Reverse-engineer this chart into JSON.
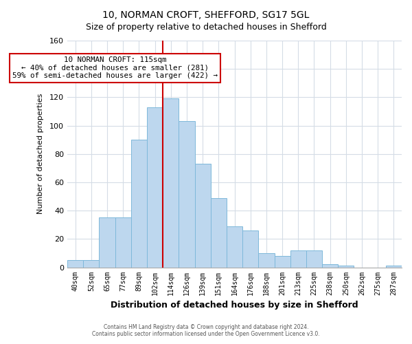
{
  "title": "10, NORMAN CROFT, SHEFFORD, SG17 5GL",
  "subtitle": "Size of property relative to detached houses in Shefford",
  "xlabel": "Distribution of detached houses by size in Shefford",
  "ylabel": "Number of detached properties",
  "bar_labels": [
    "40sqm",
    "52sqm",
    "65sqm",
    "77sqm",
    "89sqm",
    "102sqm",
    "114sqm",
    "126sqm",
    "139sqm",
    "151sqm",
    "164sqm",
    "176sqm",
    "188sqm",
    "201sqm",
    "213sqm",
    "225sqm",
    "238sqm",
    "250sqm",
    "262sqm",
    "275sqm",
    "287sqm"
  ],
  "bar_values": [
    5,
    5,
    35,
    35,
    90,
    113,
    119,
    103,
    73,
    49,
    29,
    26,
    10,
    8,
    12,
    12,
    2,
    1,
    0,
    0,
    1
  ],
  "bar_color": "#bdd7ee",
  "bar_edge_color": "#7eb8da",
  "vline_color": "#cc0000",
  "vline_bar_index": 6,
  "annotation_line0": "10 NORMAN CROFT: 115sqm",
  "annotation_line1": "← 40% of detached houses are smaller (281)",
  "annotation_line2": "59% of semi-detached houses are larger (422) →",
  "annotation_box_color": "#ffffff",
  "annotation_box_edge": "#cc0000",
  "ylim": [
    0,
    160
  ],
  "yticks": [
    0,
    20,
    40,
    60,
    80,
    100,
    120,
    140,
    160
  ],
  "footer1": "Contains HM Land Registry data © Crown copyright and database right 2024.",
  "footer2": "Contains public sector information licensed under the Open Government Licence v3.0.",
  "bg_color": "#ffffff",
  "plot_bg_color": "#ffffff",
  "grid_color": "#d5dce6"
}
